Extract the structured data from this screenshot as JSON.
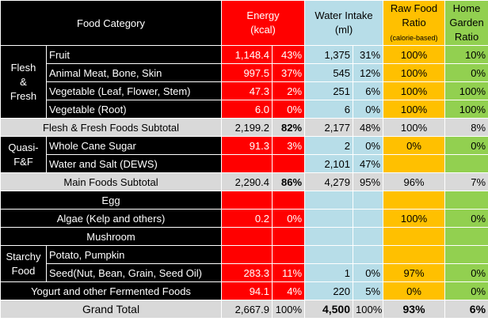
{
  "headers": {
    "food_category": "Food Category",
    "energy_line1": "Energy",
    "energy_line2": "(kcal)",
    "water_line1": "Water Intake",
    "water_line2": "(ml)",
    "raw_line1": "Raw Food",
    "raw_line2": "Ratio",
    "raw_line3": "(calorie-based)",
    "home_line1": "Home",
    "home_line2": "Garden",
    "home_line3": "Ratio"
  },
  "groups": {
    "flesh_1": "Flesh",
    "flesh_2": "&",
    "flesh_3": "Fresh",
    "quasi_1": "Quasi-",
    "quasi_2": "F&F",
    "starchy_1": "Starchy",
    "starchy_2": "Food"
  },
  "rows": [
    {
      "label": "Fruit",
      "energy": "1,148.4",
      "energy_pct": "43%",
      "water": "1,375",
      "water_pct": "31%",
      "raw": "100%",
      "home": "10%"
    },
    {
      "label": "Animal Meat, Bone, Skin",
      "energy": "997.5",
      "energy_pct": "37%",
      "water": "545",
      "water_pct": "12%",
      "raw": "100%",
      "home": "0%"
    },
    {
      "label": "Vegetable (Leaf, Flower, Stem)",
      "energy": "47.3",
      "energy_pct": "2%",
      "water": "251",
      "water_pct": "6%",
      "raw": "100%",
      "home": "100%"
    },
    {
      "label": "Vegetable (Root)",
      "energy": "6.0",
      "energy_pct": "0%",
      "water": "6",
      "water_pct": "0%",
      "raw": "100%",
      "home": "100%"
    },
    {
      "label": "Flesh & Fresh Foods Subtotal",
      "energy": "2,199.2",
      "energy_pct": "82%",
      "water": "2,177",
      "water_pct": "48%",
      "raw": "100%",
      "home": "8%"
    },
    {
      "label": "Whole Cane Sugar",
      "energy": "91.3",
      "energy_pct": "3%",
      "water": "2",
      "water_pct": "0%",
      "raw": "0%",
      "home": "0%"
    },
    {
      "label": "Water and Salt (DEWS)",
      "energy": "",
      "energy_pct": "",
      "water": "2,101",
      "water_pct": "47%",
      "raw": "",
      "home": ""
    },
    {
      "label": "Main Foods Subtotal",
      "energy": "2,290.4",
      "energy_pct": "86%",
      "water": "4,279",
      "water_pct": "95%",
      "raw": "96%",
      "home": "7%"
    },
    {
      "label": "Egg",
      "energy": "",
      "energy_pct": "",
      "water": "",
      "water_pct": "",
      "raw": "",
      "home": ""
    },
    {
      "label": "Algae (Kelp and others)",
      "energy": "0.2",
      "energy_pct": "0%",
      "water": "",
      "water_pct": "",
      "raw": "100%",
      "home": "0%"
    },
    {
      "label": "Mushroom",
      "energy": "",
      "energy_pct": "",
      "water": "",
      "water_pct": "",
      "raw": "",
      "home": ""
    },
    {
      "label": "Potato, Pumpkin",
      "energy": "",
      "energy_pct": "",
      "water": "",
      "water_pct": "",
      "raw": "",
      "home": ""
    },
    {
      "label": "Seed(Nut, Bean, Grain, Seed Oil)",
      "energy": "283.3",
      "energy_pct": "11%",
      "water": "1",
      "water_pct": "0%",
      "raw": "97%",
      "home": "0%"
    },
    {
      "label": "Yogurt and other Fermented Foods",
      "energy": "94.1",
      "energy_pct": "4%",
      "water": "220",
      "water_pct": "5%",
      "raw": "0%",
      "home": "0%"
    },
    {
      "label": "Grand Total",
      "energy": "2,667.9",
      "energy_pct": "100%",
      "water": "4,500",
      "water_pct": "100%",
      "raw": "93%",
      "home": "6%"
    }
  ]
}
